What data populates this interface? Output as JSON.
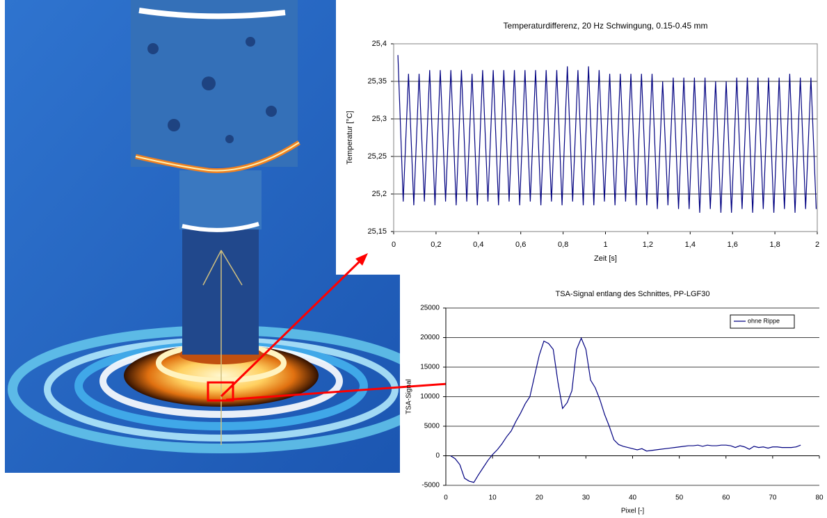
{
  "chart_data": [
    {
      "type": "line",
      "title": "Temperaturdifferenz, 20 Hz Schwingung, 0.15-0.45 mm",
      "x_label": "Zeit [s]",
      "y_label": "Temperatur [°C]",
      "x": [
        0.02,
        0.045,
        0.07,
        0.095,
        0.12,
        0.145,
        0.17,
        0.195,
        0.22,
        0.245,
        0.27,
        0.295,
        0.32,
        0.345,
        0.37,
        0.395,
        0.42,
        0.445,
        0.47,
        0.495,
        0.52,
        0.545,
        0.57,
        0.595,
        0.62,
        0.645,
        0.67,
        0.695,
        0.72,
        0.745,
        0.77,
        0.795,
        0.82,
        0.845,
        0.87,
        0.895,
        0.92,
        0.945,
        0.97,
        0.995,
        1.02,
        1.045,
        1.07,
        1.095,
        1.12,
        1.145,
        1.17,
        1.195,
        1.22,
        1.245,
        1.27,
        1.295,
        1.32,
        1.345,
        1.37,
        1.395,
        1.42,
        1.445,
        1.47,
        1.495,
        1.52,
        1.545,
        1.57,
        1.595,
        1.62,
        1.645,
        1.67,
        1.695,
        1.72,
        1.745,
        1.77,
        1.795,
        1.82,
        1.845,
        1.87,
        1.895,
        1.92,
        1.945,
        1.97,
        1.995
      ],
      "series": [
        {
          "color": "#000080",
          "values": [
            25.385,
            25.19,
            25.36,
            25.185,
            25.36,
            25.19,
            25.365,
            25.185,
            25.365,
            25.19,
            25.365,
            25.185,
            25.365,
            25.19,
            25.36,
            25.185,
            25.365,
            25.19,
            25.365,
            25.185,
            25.365,
            25.19,
            25.365,
            25.185,
            25.365,
            25.19,
            25.365,
            25.185,
            25.365,
            25.19,
            25.365,
            25.185,
            25.37,
            25.19,
            25.365,
            25.185,
            25.37,
            25.185,
            25.365,
            25.19,
            25.36,
            25.185,
            25.36,
            25.19,
            25.36,
            25.185,
            25.36,
            25.185,
            25.36,
            25.18,
            25.35,
            25.185,
            25.355,
            25.18,
            25.355,
            25.18,
            25.355,
            25.175,
            25.355,
            25.18,
            25.35,
            25.175,
            25.35,
            25.175,
            25.355,
            25.18,
            25.355,
            25.175,
            25.355,
            25.18,
            25.355,
            25.175,
            25.355,
            25.18,
            25.36,
            25.175,
            25.355,
            25.18,
            25.355,
            25.18
          ]
        }
      ],
      "xlim": [
        0,
        2
      ],
      "ylim": [
        25.15,
        25.4
      ],
      "xticks": [
        0,
        {
          "value": 0.2,
          "label": "0,2"
        },
        {
          "value": 0.4,
          "label": "0,4"
        },
        {
          "value": 0.6,
          "label": "0,6"
        },
        {
          "value": 0.8,
          "label": "0,8"
        },
        1,
        {
          "value": 1.2,
          "label": "1,2"
        },
        {
          "value": 1.4,
          "label": "1,4"
        },
        {
          "value": 1.6,
          "label": "1,6"
        },
        {
          "value": 1.8,
          "label": "1,8"
        },
        2
      ],
      "yticks": [
        {
          "value": 25.15,
          "label": "25,15"
        },
        {
          "value": 25.2,
          "label": "25,2"
        },
        {
          "value": 25.25,
          "label": "25,25"
        },
        {
          "value": 25.3,
          "label": "25,3"
        },
        {
          "value": 25.35,
          "label": "25,35"
        },
        {
          "value": 25.4,
          "label": "25,4"
        }
      ],
      "grid": true
    },
    {
      "type": "line",
      "title": "TSA-Signal entlang des Schnittes, PP-LGF30",
      "x_label": "Pixel [-]",
      "y_label": "TSA-Signal",
      "x": [
        1,
        2,
        3,
        4,
        5,
        6,
        7,
        8,
        9,
        10,
        11,
        12,
        13,
        14,
        15,
        16,
        17,
        18,
        19,
        20,
        21,
        22,
        23,
        24,
        25,
        26,
        27,
        28,
        29,
        30,
        31,
        32,
        33,
        34,
        35,
        36,
        37,
        38,
        39,
        40,
        41,
        42,
        43,
        44,
        45,
        46,
        47,
        48,
        49,
        50,
        51,
        52,
        53,
        54,
        55,
        56,
        57,
        58,
        59,
        60,
        61,
        62,
        63,
        64,
        65,
        66,
        67,
        68,
        69,
        70,
        71,
        72,
        73,
        74,
        75,
        76
      ],
      "series": [
        {
          "name": "ohne Rippe",
          "color": "#000080",
          "values": [
            0,
            -500,
            -1500,
            -3800,
            -4300,
            -4500,
            -3200,
            -2000,
            -800,
            200,
            1000,
            2000,
            3200,
            4200,
            5800,
            7200,
            8800,
            10000,
            13500,
            17000,
            19400,
            19000,
            18000,
            12500,
            8000,
            9000,
            11000,
            18000,
            19900,
            18000,
            12800,
            11500,
            9500,
            7000,
            5000,
            2700,
            1900,
            1600,
            1400,
            1200,
            1000,
            1200,
            800,
            900,
            1000,
            1100,
            1200,
            1300,
            1400,
            1500,
            1600,
            1700,
            1700,
            1800,
            1600,
            1800,
            1700,
            1700,
            1800,
            1800,
            1700,
            1400,
            1700,
            1500,
            1100,
            1600,
            1400,
            1500,
            1300,
            1500,
            1500,
            1400,
            1400,
            1400,
            1500,
            1800
          ]
        }
      ],
      "xlim": [
        0,
        80
      ],
      "ylim": [
        -5000,
        25000
      ],
      "xticks": [
        0,
        10,
        20,
        30,
        40,
        50,
        60,
        70,
        80
      ],
      "yticks": [
        -5000,
        0,
        5000,
        10000,
        15000,
        20000,
        25000
      ],
      "grid": true,
      "legend": "top-right"
    }
  ]
}
